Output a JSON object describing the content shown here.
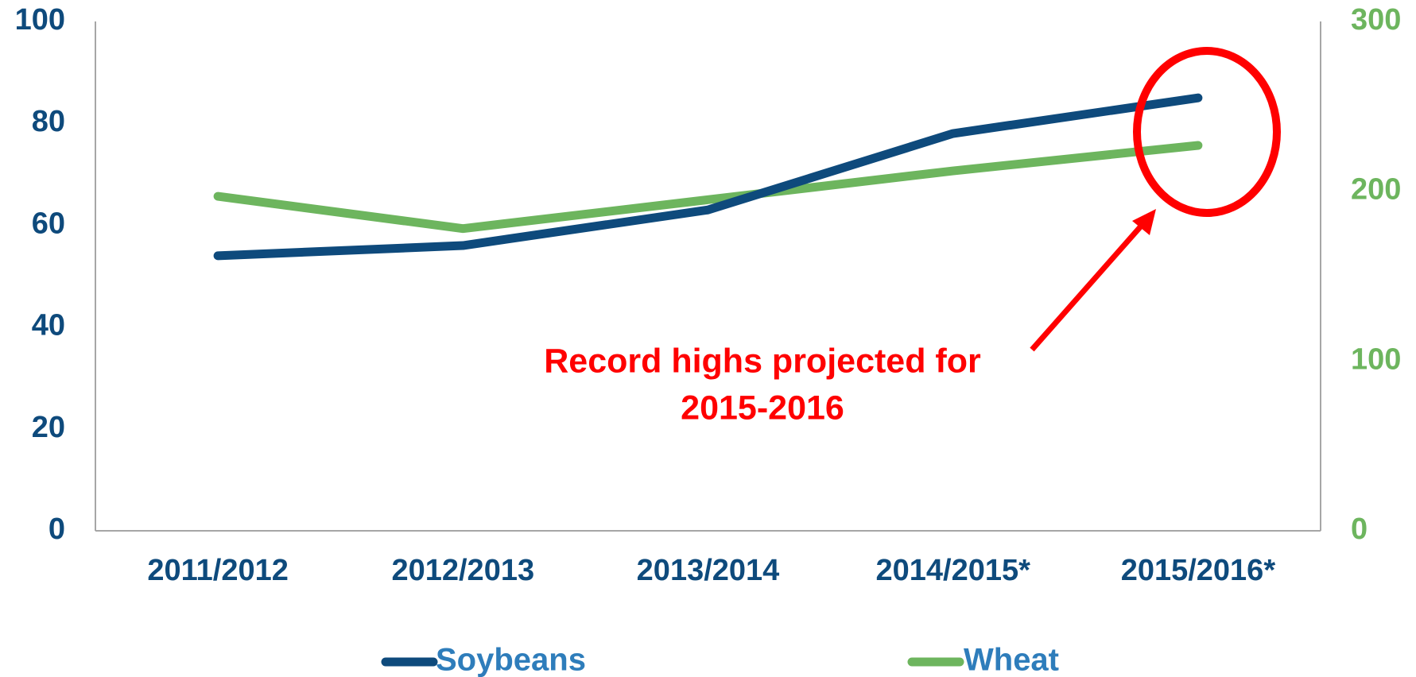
{
  "chart_data": {
    "type": "line",
    "categories": [
      "2011/2012",
      "2012/2013",
      "2013/2014",
      "2014/2015*",
      "2015/2016*"
    ],
    "series": [
      {
        "name": "Soybeans",
        "color": "#0e4a7c",
        "values": [
          54,
          56,
          63,
          78,
          85
        ]
      },
      {
        "name": "Wheat",
        "color": "#6db55e",
        "axis": "y2",
        "values": [
          197,
          178,
          195,
          212,
          227
        ]
      }
    ],
    "ylim": [
      0,
      100
    ],
    "yticks": [
      0,
      20,
      40,
      60,
      80,
      100
    ],
    "y2lim": [
      0,
      300
    ],
    "y2ticks": [
      0,
      100,
      200,
      300
    ],
    "annotation": [
      "Record highs projected for",
      "2015-2016"
    ],
    "annotation_color": "#ff0000",
    "legend": "bottom"
  }
}
